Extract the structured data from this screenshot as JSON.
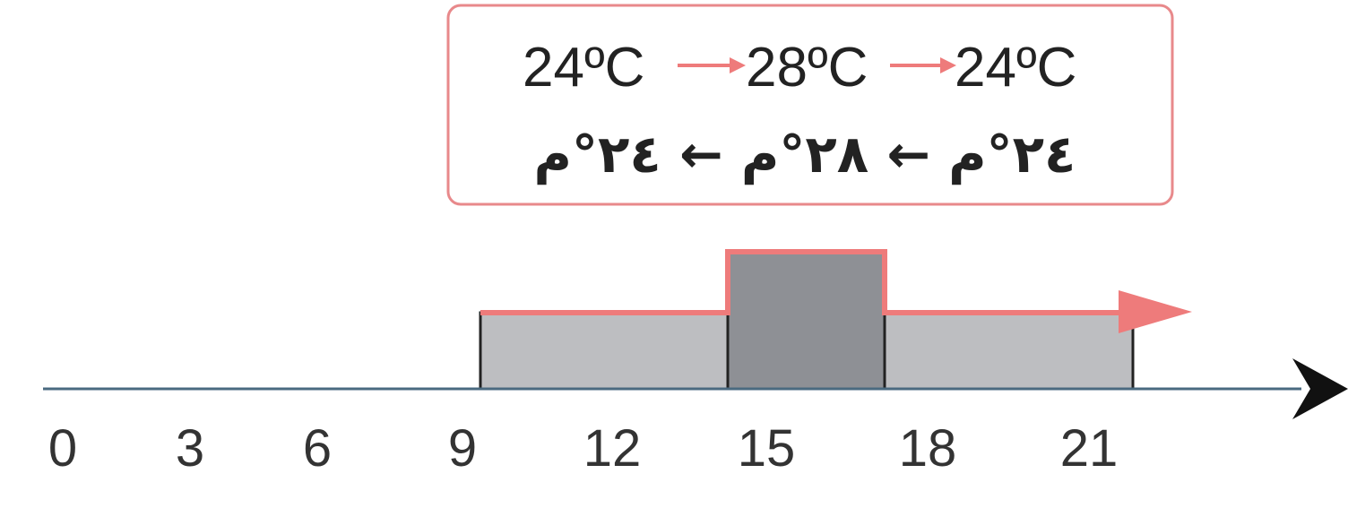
{
  "colors": {
    "accent": "#ee7b7b",
    "box_border": "#e8898b",
    "axis": "#4a6a80",
    "arrowhead": "#111111",
    "bar_light": "#bdbec1",
    "bar_dark": "#8e9095",
    "bar_outline": "#222222"
  },
  "box": {
    "temps_en": [
      "24ºC",
      "28ºC",
      "24ºC"
    ],
    "line_ar": "٢٤°م ← ٢٨°م ← ٢٤°م"
  },
  "axis": {
    "ticks": [
      "0",
      "3",
      "6",
      "9",
      "12",
      "15",
      "18",
      "21"
    ]
  },
  "steps": [
    {
      "from": "9",
      "to": "14",
      "level": "24ºC",
      "shade": "light"
    },
    {
      "from": "14",
      "to": "17",
      "level": "28ºC",
      "shade": "dark"
    },
    {
      "from": "17",
      "to": "21",
      "level": "24ºC",
      "shade": "light"
    }
  ]
}
